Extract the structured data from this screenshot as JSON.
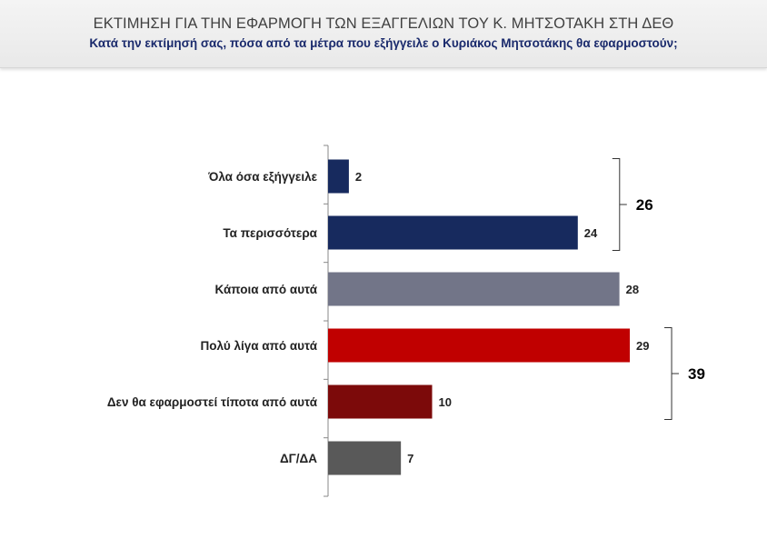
{
  "header": {
    "title": "ΕΚΤΙΜΗΣΗ ΓΙΑ ΤΗΝ ΕΦΑΡΜΟΓΗ ΤΩΝ ΕΞΑΓΓΕΛΙΩΝ ΤΟΥ Κ. ΜΗΤΣΟΤΑΚΗ ΣΤΗ ΔΕΘ",
    "subtitle": "Κατά την εκτίμησή σας, πόσα από τα μέτρα που εξήγγειλε ο Κυριάκος Μητσοτάκης θα εφαρμοστούν;"
  },
  "chart_data": {
    "type": "bar",
    "orientation": "horizontal",
    "title": "ΕΚΤΙΜΗΣΗ ΓΙΑ ΤΗΝ ΕΦΑΡΜΟΓΗ ΤΩΝ ΕΞΑΓΓΕΛΙΩΝ ΤΟΥ Κ. ΜΗΤΣΟΤΑΚΗ ΣΤΗ ΔΕΘ",
    "subtitle": "Κατά την εκτίμησή σας, πόσα από τα μέτρα που εξήγγειλε ο Κυριάκος Μητσοτάκης θα εφαρμοστούν;",
    "categories": [
      "Όλα όσα εξήγγειλε",
      "Τα περισσότερα",
      "Κάποια από αυτά",
      "Πολύ λίγα από αυτά",
      "Δεν θα εφαρμοστεί τίποτα από αυτά",
      "ΔΓ/ΔΑ"
    ],
    "values": [
      2,
      24,
      28,
      29,
      10,
      7
    ],
    "colors": [
      "#172a5e",
      "#172a5e",
      "#727588",
      "#c00000",
      "#7c0a0a",
      "#595959"
    ],
    "groups": [
      {
        "from": 0,
        "to": 1,
        "total": "26"
      },
      {
        "from": 3,
        "to": 4,
        "total": "39"
      }
    ],
    "xlim": [
      0,
      35
    ],
    "grid": false,
    "legend": "none"
  }
}
